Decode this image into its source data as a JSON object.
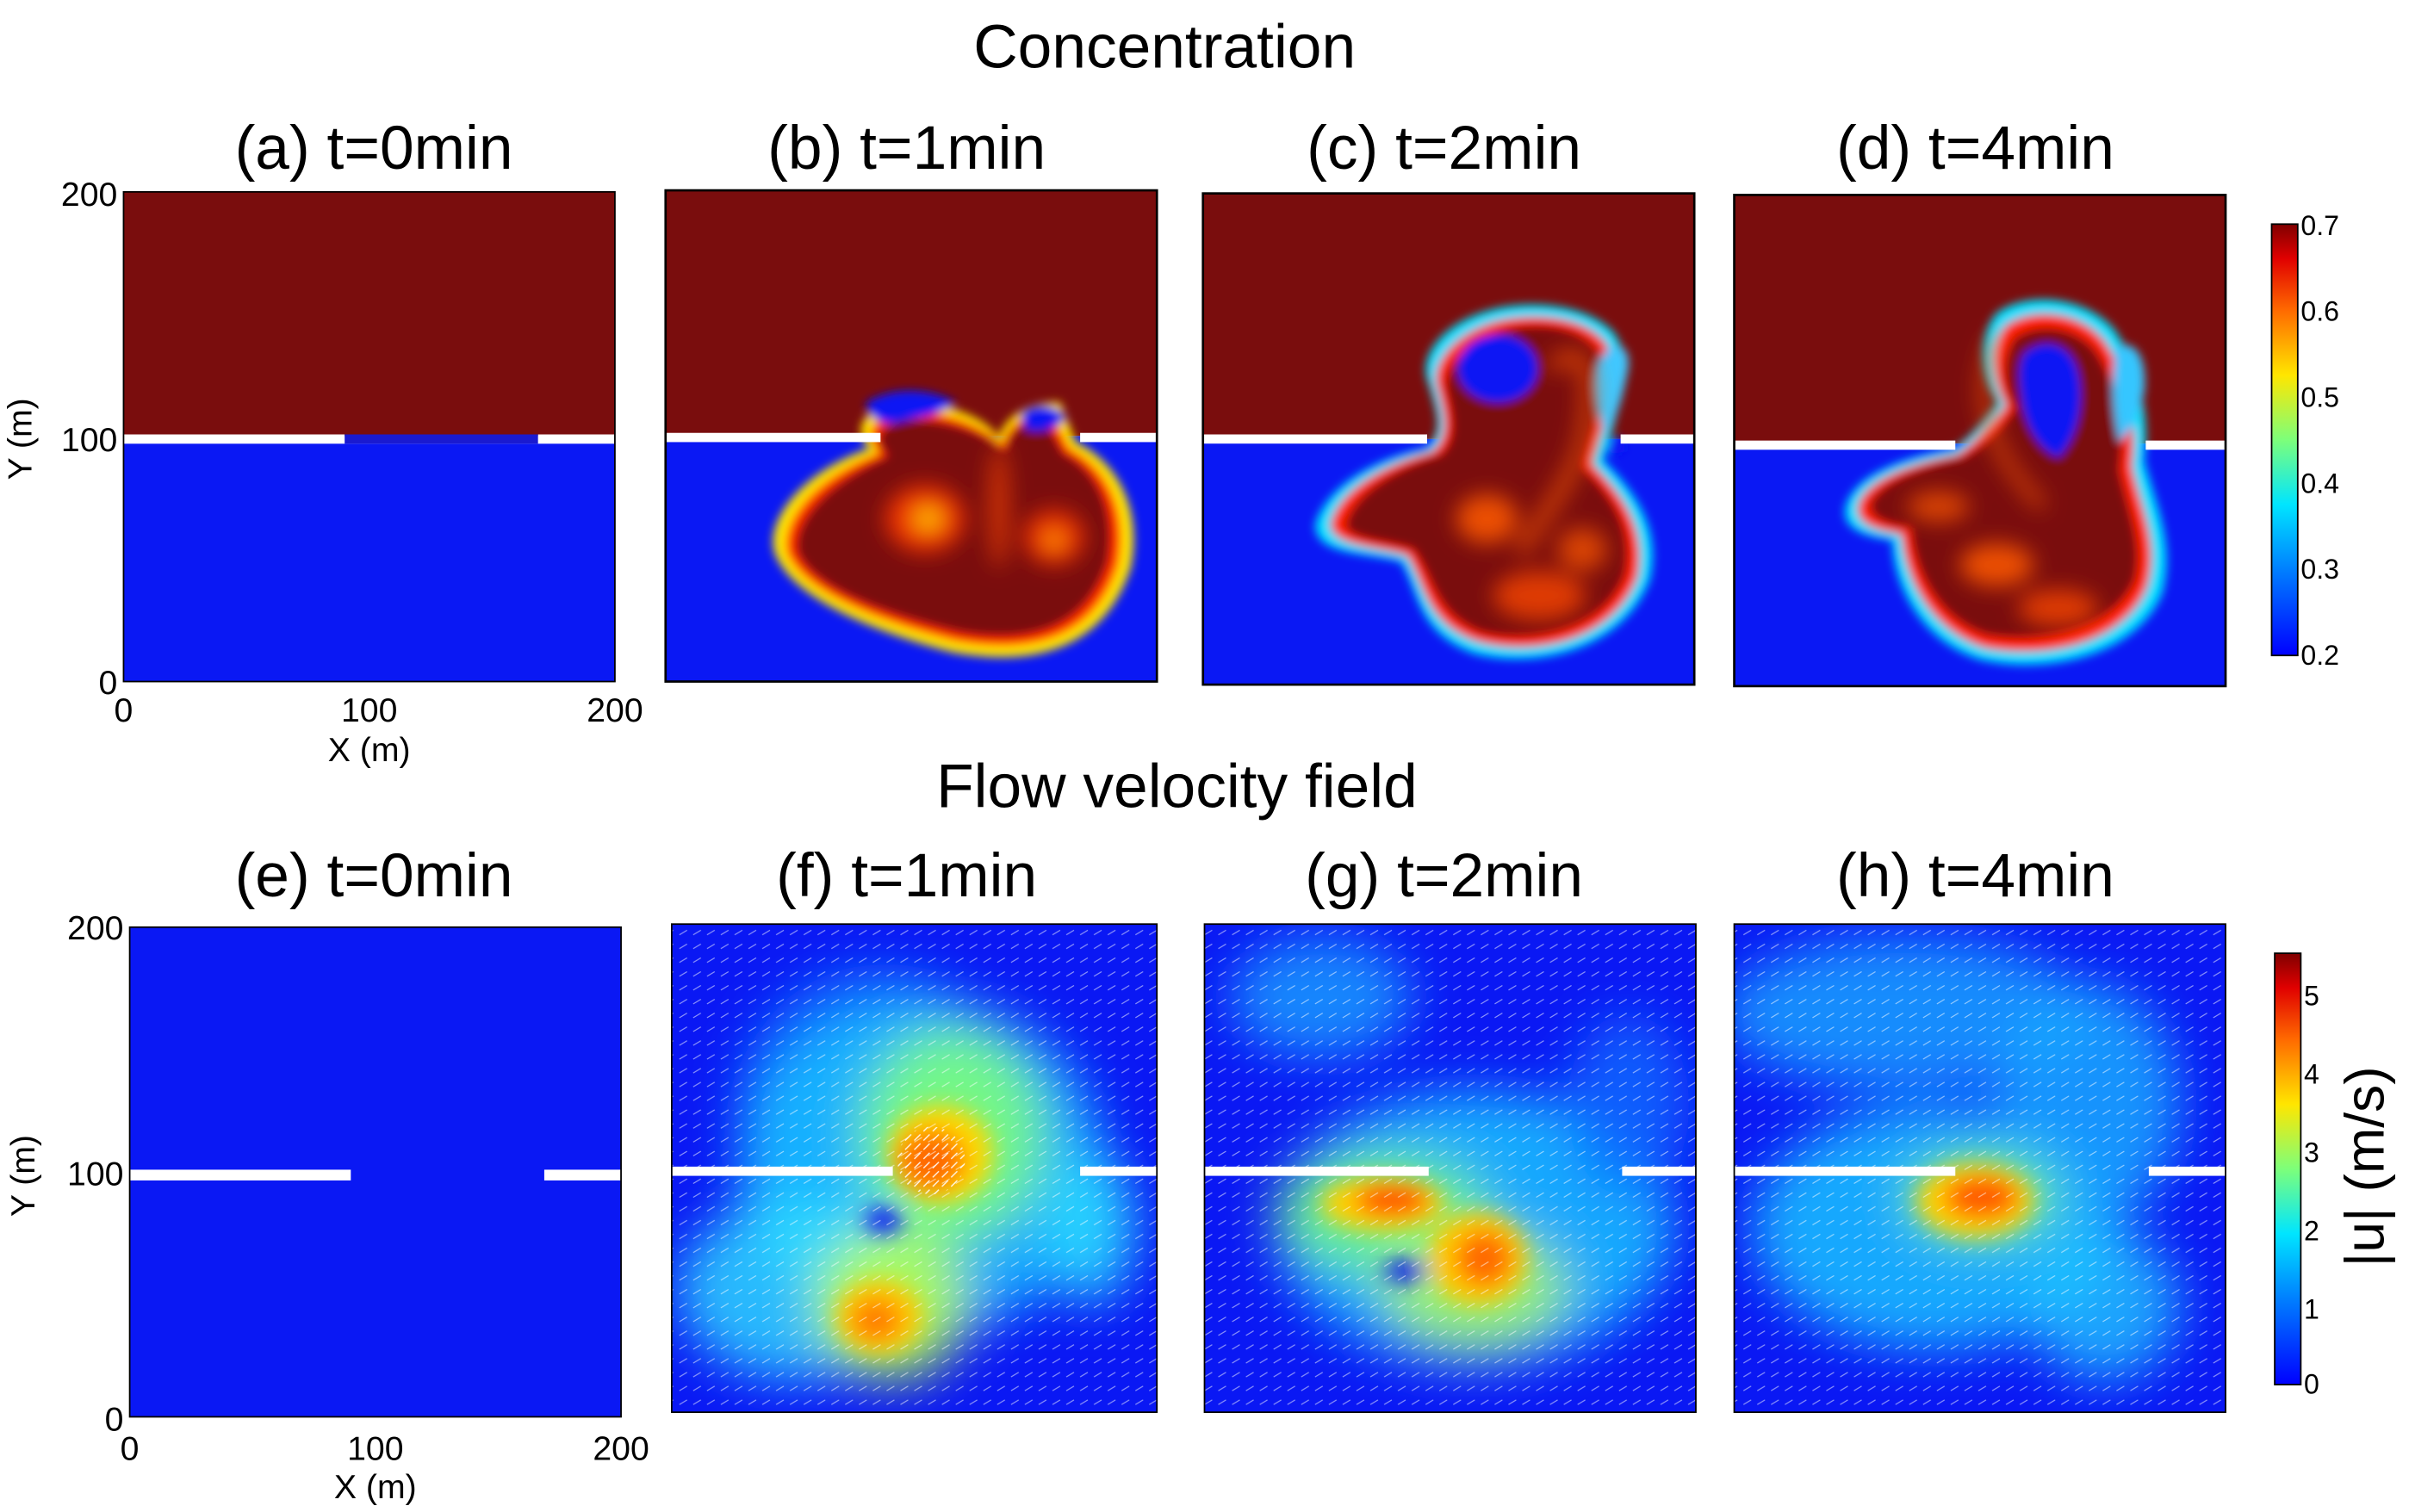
{
  "titles": {
    "concentration": "Concentration",
    "velocity": "Flow velocity field"
  },
  "panel_titles": {
    "a": "(a) t=0min",
    "b": "(b) t=1min",
    "c": "(c) t=2min",
    "d": "(d) t=4min",
    "e": "(e) t=0min",
    "f": "(f) t=1min",
    "g": "(g) t=2min",
    "h": "(h) t=4min"
  },
  "axes": {
    "xlabel": "X (m)",
    "ylabel": "Y (m)",
    "xticks": [
      "0",
      "100",
      "200"
    ],
    "yticks": [
      "0",
      "100",
      "200"
    ]
  },
  "colorbars": {
    "concentration": {
      "ticks": [
        "0.7",
        "0.6",
        "0.5",
        "0.4",
        "0.3",
        "0.2"
      ],
      "range": [
        0.2,
        0.7
      ]
    },
    "velocity": {
      "label": "|u| (m/s)",
      "ticks": [
        "5",
        "4",
        "3",
        "2",
        "1",
        "0"
      ],
      "range": [
        0,
        5.5
      ]
    }
  },
  "colors": {
    "high": "#7a0d0d",
    "low": "#0a18f4",
    "wall": "#ffffff"
  },
  "chart_data": [
    {
      "type": "heatmap",
      "title": "(a) t=0min",
      "quantity": "concentration",
      "xlabel": "X (m)",
      "ylabel": "Y (m)",
      "xlim": [
        0,
        200
      ],
      "ylim": [
        0,
        200
      ],
      "colorbar_range": [
        0.2,
        0.7
      ],
      "regions": [
        {
          "name": "upper",
          "y_range": [
            100,
            200
          ],
          "value": 0.7
        },
        {
          "name": "lower",
          "y_range": [
            0,
            100
          ],
          "value": 0.2
        }
      ],
      "barrier": {
        "y": 100,
        "segments": [
          [
            0,
            90
          ],
          [
            170,
            200
          ]
        ],
        "opening": [
          90,
          170
        ]
      }
    },
    {
      "type": "heatmap",
      "title": "(b) t=1min",
      "quantity": "concentration",
      "xlim": [
        0,
        200
      ],
      "ylim": [
        0,
        200
      ],
      "colorbar_range": [
        0.2,
        0.7
      ]
    },
    {
      "type": "heatmap",
      "title": "(c) t=2min",
      "quantity": "concentration",
      "xlim": [
        0,
        200
      ],
      "ylim": [
        0,
        200
      ],
      "colorbar_range": [
        0.2,
        0.7
      ]
    },
    {
      "type": "heatmap",
      "title": "(d) t=4min",
      "quantity": "concentration",
      "xlim": [
        0,
        200
      ],
      "ylim": [
        0,
        200
      ],
      "colorbar_range": [
        0.2,
        0.7
      ]
    },
    {
      "type": "heatmap",
      "title": "(e) t=0min",
      "quantity": "velocity magnitude",
      "xlabel": "X (m)",
      "ylabel": "Y (m)",
      "xlim": [
        0,
        200
      ],
      "ylim": [
        0,
        200
      ],
      "colorbar_range": [
        0,
        5.5
      ],
      "regions": [
        {
          "name": "domain",
          "value": 0
        }
      ],
      "barrier": {
        "y": 100,
        "segments": [
          [
            0,
            90
          ],
          [
            170,
            200
          ]
        ],
        "opening": [
          90,
          170
        ]
      }
    },
    {
      "type": "heatmap",
      "title": "(f) t=1min",
      "quantity": "velocity magnitude",
      "xlim": [
        0,
        200
      ],
      "ylim": [
        0,
        200
      ],
      "colorbar_range": [
        0,
        5.5
      ]
    },
    {
      "type": "heatmap",
      "title": "(g) t=2min",
      "quantity": "velocity magnitude",
      "xlim": [
        0,
        200
      ],
      "ylim": [
        0,
        200
      ],
      "colorbar_range": [
        0,
        5.5
      ]
    },
    {
      "type": "heatmap",
      "title": "(h) t=4min",
      "quantity": "velocity magnitude",
      "xlim": [
        0,
        200
      ],
      "ylim": [
        0,
        200
      ],
      "colorbar_range": [
        0,
        5.5
      ]
    }
  ]
}
